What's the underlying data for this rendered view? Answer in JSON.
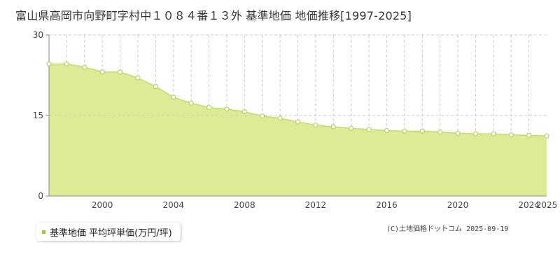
{
  "title": "富山県高岡市向野町字村中１０８４番１３外 基準地価 地価推移[1997-2025]",
  "legend": {
    "label": "基準地価 平均坪単価(万円/坪)"
  },
  "credit": "(C)土地価格ドットコム 2025-09-19",
  "colors": {
    "fill": "#dcec94",
    "line": "#c4dc6c",
    "marker_fill": "#ffffff",
    "marker_stroke": "#b8d25c",
    "legend_swatch": "#a4c739",
    "grid": "#cccccc"
  },
  "chart_data": {
    "type": "area",
    "title": "富山県高岡市向野町字村中１０８４番１３外 基準地価 地価推移[1997-2025]",
    "xlabel": "",
    "ylabel": "",
    "xlim": [
      1997,
      2025
    ],
    "ylim": [
      0,
      30
    ],
    "x_ticks": [
      2000,
      2004,
      2008,
      2012,
      2016,
      2020,
      2024,
      2025
    ],
    "y_ticks": [
      0,
      15,
      30
    ],
    "grid": true,
    "legend_position": "bottom-left",
    "series": [
      {
        "name": "基準地価 平均坪単価(万円/坪)",
        "x": [
          1997,
          1998,
          1999,
          2000,
          2001,
          2002,
          2003,
          2004,
          2005,
          2006,
          2007,
          2008,
          2009,
          2010,
          2011,
          2012,
          2013,
          2014,
          2015,
          2016,
          2017,
          2018,
          2019,
          2020,
          2021,
          2022,
          2023,
          2024,
          2025
        ],
        "values": [
          24.6,
          24.6,
          24.0,
          23.1,
          23.1,
          22.0,
          20.4,
          18.4,
          17.3,
          16.5,
          16.2,
          15.7,
          14.9,
          14.5,
          13.8,
          13.2,
          12.9,
          12.6,
          12.4,
          12.2,
          12.1,
          12.1,
          11.9,
          11.7,
          11.6,
          11.6,
          11.4,
          11.3,
          11.2
        ]
      }
    ]
  }
}
